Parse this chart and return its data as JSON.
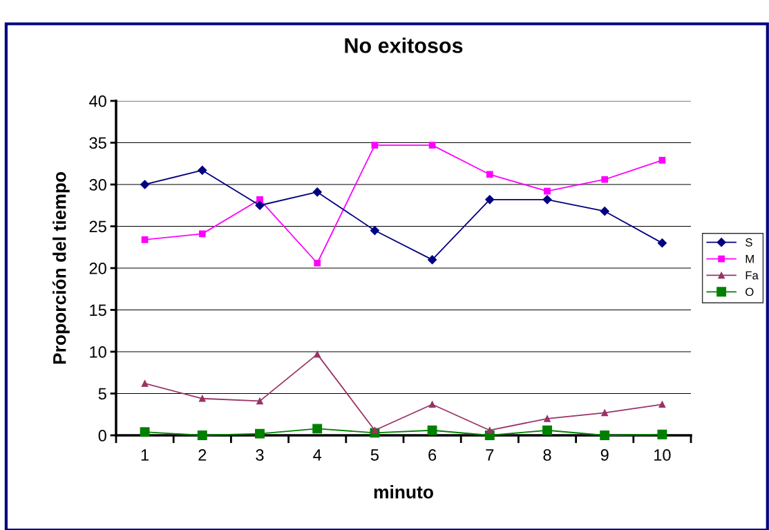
{
  "chart_data": {
    "type": "line",
    "title": "No exitosos",
    "xlabel": "minuto",
    "ylabel": "Proporción del tiempo",
    "categories": [
      "1",
      "2",
      "3",
      "4",
      "5",
      "6",
      "7",
      "8",
      "9",
      "10"
    ],
    "series": [
      {
        "name": "S",
        "color": "#000080",
        "marker": "diamond",
        "values": [
          30.0,
          31.7,
          27.5,
          29.1,
          24.5,
          21.0,
          28.2,
          28.2,
          26.8,
          23.0
        ]
      },
      {
        "name": "M",
        "color": "#ff00ff",
        "marker": "square",
        "values": [
          23.4,
          24.1,
          28.2,
          20.6,
          34.7,
          34.7,
          31.2,
          29.2,
          30.6,
          32.9
        ]
      },
      {
        "name": "Fa",
        "color": "#993366",
        "marker": "triangle",
        "values": [
          6.2,
          4.4,
          4.1,
          9.7,
          0.6,
          3.7,
          0.6,
          2.0,
          2.7,
          3.7
        ]
      },
      {
        "name": "O",
        "color": "#008000",
        "marker": "square",
        "values": [
          0.4,
          0.0,
          0.2,
          0.8,
          0.3,
          0.6,
          0.0,
          0.6,
          0.0,
          0.1
        ]
      }
    ],
    "ylim": [
      0,
      40
    ],
    "yticks": [
      0,
      5,
      10,
      15,
      20,
      25,
      30,
      35,
      40
    ],
    "grid": "y",
    "legend": "right"
  }
}
